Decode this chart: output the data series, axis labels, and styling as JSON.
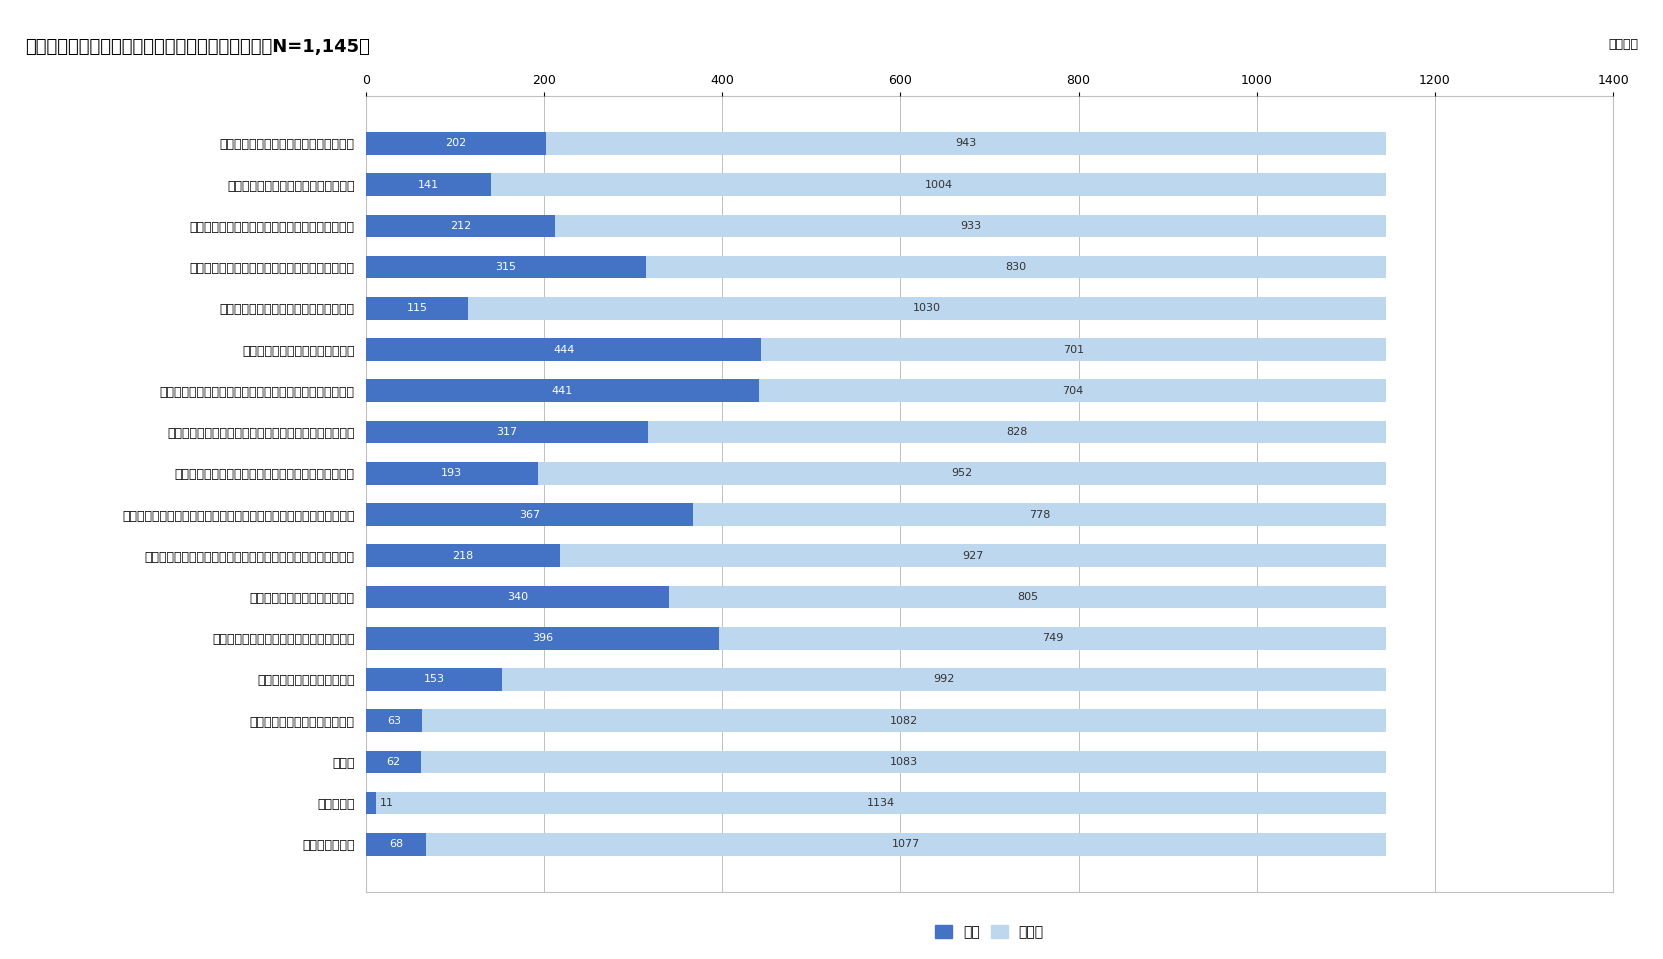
{
  "title": "図表４．政府の少子化対策へ期待していない理由（N=1,145）",
  "unit_label": "単位：人",
  "categories": [
    "少子化の進行速度が想定以上に速いから",
    "予算を倍増しても足りないと思うから",
    "財源確保に向けた議論が進んでいないと思うから",
    "表現にインパクトがあるだけのように感じるから",
    "３つの柱の内容が適切でないと思うから",
    "政府の課題認識が甘いと思うから",
    "政府の少子化対策は、上手くいったことがないと思うから",
    "政府の少子化対策は、いつもスピードが遅いと思うから",
    "少子化対策より優先すべき社会課題があると思うから",
    "選挙に向けて、受けの良い政策を打ち出しただけのように感じるから",
    "防衛予算増額の議論から注意をそらすためのように感じるから",
    "岸田政権を支持していないから",
    "そもそも結婚をしない人が増えているから",
    "自分や家族に関係がないから",
    "日頃から興味がない事柄だから",
    "その他",
    "なんとなく",
    "特に理由はない"
  ],
  "hai_values": [
    202,
    141,
    212,
    315,
    115,
    444,
    441,
    317,
    193,
    367,
    218,
    340,
    396,
    153,
    63,
    62,
    11,
    68
  ],
  "iie_values": [
    943,
    1004,
    933,
    830,
    1030,
    701,
    704,
    828,
    952,
    778,
    927,
    805,
    749,
    992,
    1082,
    1083,
    1134,
    1077
  ],
  "hai_color": "#4472C4",
  "iie_color": "#BDD7EE",
  "background_color": "#FFFFFF",
  "plot_bg_color": "#FFFFFF",
  "grid_color": "#C0C0C0",
  "xlim": [
    0,
    1400
  ],
  "xticks": [
    0,
    200,
    400,
    600,
    800,
    1000,
    1200,
    1400
  ],
  "legend_hai": "はい",
  "legend_iie": "いいえ",
  "bar_height": 0.55,
  "title_fontsize": 13,
  "label_fontsize": 9,
  "tick_fontsize": 9,
  "value_fontsize": 8
}
